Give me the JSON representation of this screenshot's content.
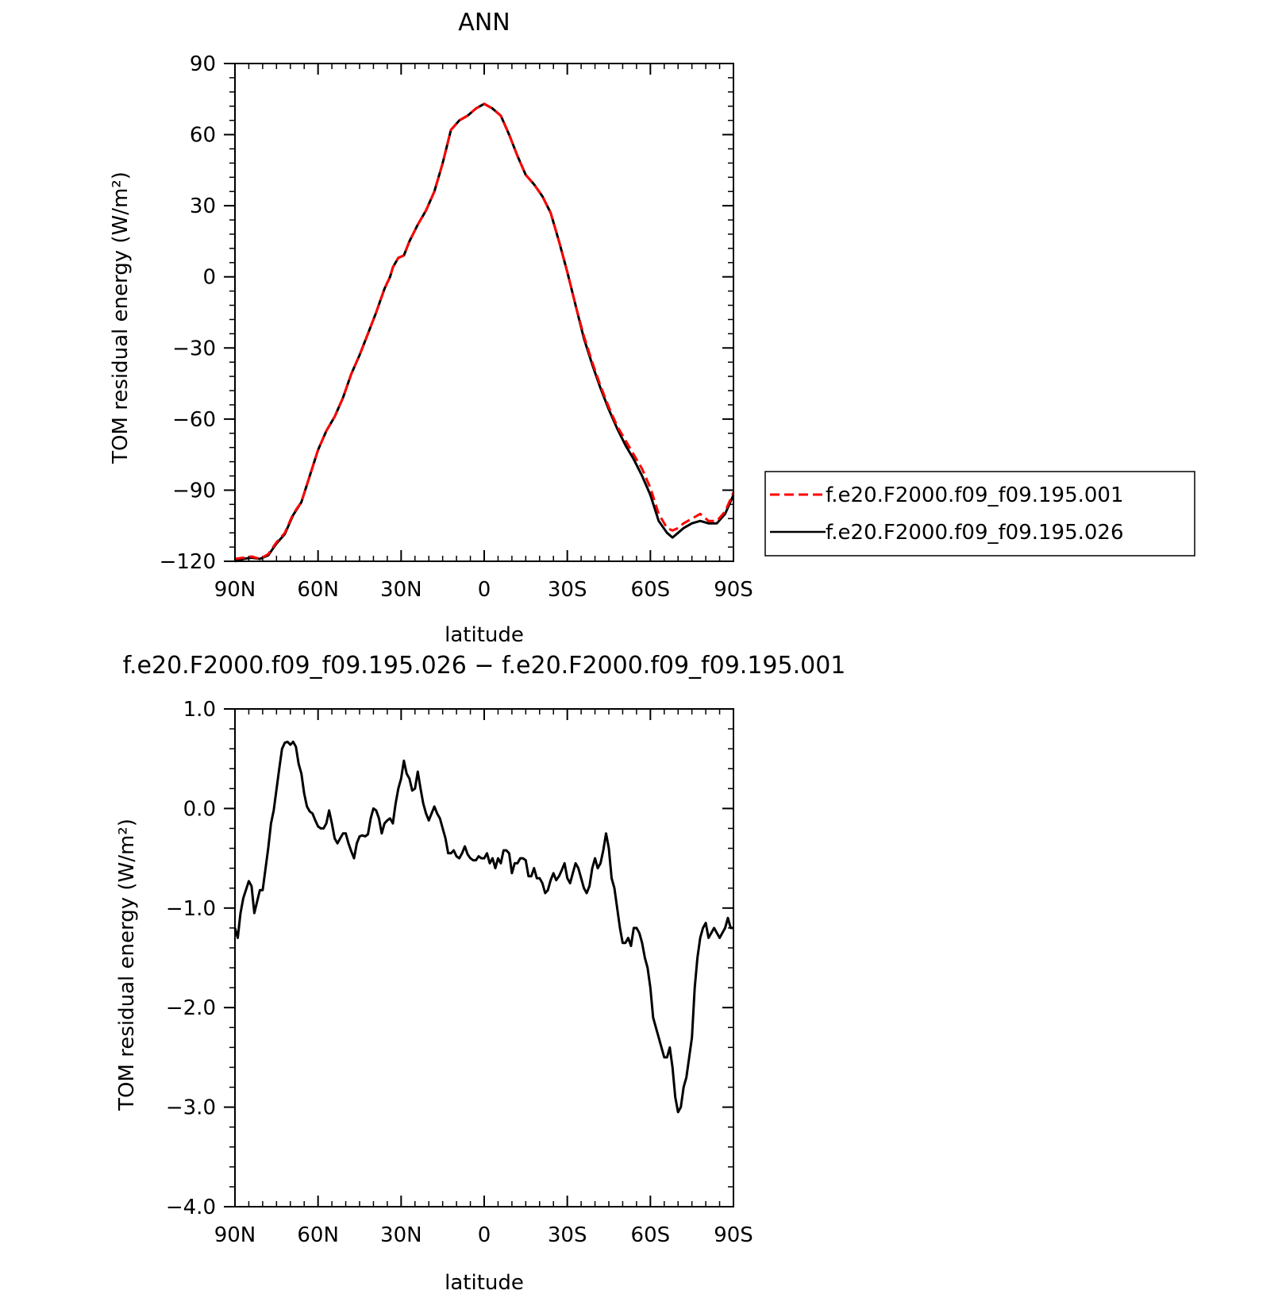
{
  "colors": {
    "series_case": "#ff0000",
    "series_control": "#000000",
    "diff_line": "#000000"
  },
  "chart_data": [
    {
      "type": "line",
      "title": "ANN",
      "xlabel": "latitude",
      "ylabel": "TOM residual energy (W/m²)",
      "xlim": [
        90,
        -90
      ],
      "ylim": [
        -120,
        90
      ],
      "x_ticks": [
        90,
        60,
        30,
        0,
        -30,
        -60,
        -90
      ],
      "x_tick_labels": [
        "90N",
        "60N",
        "30N",
        "0",
        "30S",
        "60S",
        "90S"
      ],
      "y_ticks": [
        90,
        60,
        30,
        0,
        -30,
        -60,
        -90,
        -120
      ],
      "y_tick_labels": [
        "90",
        "60",
        "30",
        "0",
        "−30",
        "−60",
        "−90",
        "−120"
      ],
      "legend_position": "right",
      "series": [
        {
          "name": "f.e20.F2000.f09_f09.195.001",
          "color": "#ff0000",
          "dash": "dashed",
          "x": [
            90,
            87,
            84,
            81,
            78,
            75,
            72,
            69,
            66,
            63,
            60,
            57,
            54,
            51,
            48,
            45,
            42,
            39,
            36,
            34,
            33,
            31,
            29,
            27,
            24,
            21,
            18,
            15,
            12,
            9,
            6,
            3,
            0,
            -3,
            -6,
            -9,
            -12,
            -15,
            -18,
            -21,
            -24,
            -27,
            -30,
            -33,
            -36,
            -39,
            -42,
            -45,
            -48,
            -51,
            -54,
            -57,
            -60,
            -63,
            -66,
            -68,
            -70,
            -72,
            -75,
            -78,
            -81,
            -84,
            -87,
            -90
          ],
          "y": [
            -119,
            -118.5,
            -118,
            -119,
            -117,
            -112,
            -108,
            -100,
            -95,
            -84,
            -73,
            -65,
            -59,
            -51,
            -41,
            -33,
            -24,
            -15,
            -5,
            0,
            4,
            8,
            9,
            15,
            22,
            28,
            36,
            48,
            62,
            66,
            68,
            71,
            73,
            71,
            68,
            60,
            51,
            43,
            39,
            34,
            27,
            15,
            2,
            -12,
            -25,
            -36,
            -46,
            -55,
            -63,
            -69,
            -75,
            -81,
            -89,
            -100,
            -106,
            -107,
            -106,
            -104,
            -102,
            -100,
            -103,
            -103,
            -99,
            -91
          ]
        },
        {
          "name": "f.e20.F2000.f09_f09.195.026",
          "color": "#000000",
          "dash": "solid",
          "x": [
            90,
            87,
            84,
            81,
            78,
            75,
            72,
            69,
            66,
            63,
            60,
            57,
            54,
            51,
            48,
            45,
            42,
            39,
            36,
            34,
            33,
            31,
            29,
            27,
            24,
            21,
            18,
            15,
            12,
            9,
            6,
            3,
            0,
            -3,
            -6,
            -9,
            -12,
            -15,
            -18,
            -21,
            -24,
            -27,
            -30,
            -33,
            -36,
            -39,
            -42,
            -45,
            -48,
            -51,
            -54,
            -57,
            -60,
            -63,
            -66,
            -68,
            -70,
            -72,
            -75,
            -78,
            -81,
            -84,
            -87,
            -90
          ],
          "y": [
            -120,
            -119,
            -118.5,
            -119,
            -117.5,
            -112.5,
            -108.5,
            -100.5,
            -95,
            -84,
            -73,
            -65,
            -59,
            -51,
            -41,
            -33,
            -24,
            -15,
            -5,
            0,
            4,
            8,
            9,
            15,
            22,
            28,
            36,
            48,
            62,
            66,
            68,
            71,
            73,
            71,
            68,
            60,
            51,
            43,
            39,
            34,
            27,
            15,
            2,
            -12,
            -26,
            -37,
            -47,
            -56,
            -64,
            -71,
            -77,
            -84,
            -92,
            -103,
            -108,
            -110,
            -108,
            -106,
            -104,
            -103,
            -104,
            -104,
            -100,
            -92
          ]
        }
      ]
    },
    {
      "type": "line",
      "title": "f.e20.F2000.f09_f09.195.026 − f.e20.F2000.f09_f09.195.001",
      "xlabel": "latitude",
      "ylabel": "TOM residual energy (W/m²)",
      "xlim": [
        90,
        -90
      ],
      "ylim": [
        -4.0,
        1.0
      ],
      "x_ticks": [
        90,
        60,
        30,
        0,
        -30,
        -60,
        -90
      ],
      "x_tick_labels": [
        "90N",
        "60N",
        "30N",
        "0",
        "30S",
        "60S",
        "90S"
      ],
      "y_ticks": [
        1.0,
        0.0,
        -1.0,
        -2.0,
        -3.0,
        -4.0
      ],
      "y_tick_labels": [
        "1.0",
        "0.0",
        "−1.0",
        "−2.0",
        "−3.0",
        "−4.0"
      ],
      "series": [
        {
          "color": "#000000",
          "dash": "solid",
          "x": [
            90,
            89,
            88,
            87,
            85,
            84,
            83,
            81,
            80,
            78,
            77,
            76,
            74,
            73,
            72,
            71,
            70,
            69,
            68,
            67,
            66,
            65,
            64,
            63,
            62,
            61,
            60,
            59,
            58,
            57,
            56,
            55,
            54,
            53,
            52,
            51,
            50,
            49,
            48,
            47,
            46,
            45,
            44,
            43,
            42,
            41,
            40,
            39,
            38,
            37,
            36,
            35,
            34,
            33,
            32,
            31,
            30,
            29,
            28,
            27,
            26,
            25,
            24,
            23,
            22,
            21,
            20,
            19,
            18,
            17,
            16,
            15,
            14,
            13,
            12,
            11,
            10,
            9,
            8,
            7,
            6,
            5,
            4,
            3,
            2,
            1,
            0,
            -1,
            -2,
            -3,
            -4,
            -5,
            -6,
            -7,
            -8,
            -9,
            -10,
            -11,
            -12,
            -13,
            -14,
            -15,
            -16,
            -17,
            -18,
            -19,
            -20,
            -21,
            -22,
            -23,
            -24,
            -25,
            -26,
            -27,
            -28,
            -29,
            -30,
            -31,
            -32,
            -33,
            -34,
            -35,
            -36,
            -37,
            -38,
            -39,
            -40,
            -41,
            -42,
            -43,
            -44,
            -45,
            -46,
            -47,
            -48,
            -49,
            -50,
            -51,
            -52,
            -53,
            -54,
            -55,
            -56,
            -57,
            -58,
            -59,
            -60,
            -61,
            -62,
            -63,
            -64,
            -65,
            -66,
            -67,
            -68,
            -69,
            -70,
            -71,
            -72,
            -73,
            -74,
            -75,
            -76,
            -77,
            -78,
            -79,
            -80,
            -81,
            -82,
            -83,
            -84,
            -85,
            -86,
            -87,
            -88,
            -89,
            -90
          ],
          "y": [
            -1.2,
            -1.3,
            -1.05,
            -0.9,
            -0.73,
            -0.78,
            -1.05,
            -0.82,
            -0.82,
            -0.4,
            -0.15,
            -0.02,
            0.4,
            0.6,
            0.66,
            0.67,
            0.64,
            0.67,
            0.62,
            0.45,
            0.35,
            0.15,
            0.02,
            -0.03,
            -0.05,
            -0.12,
            -0.18,
            -0.2,
            -0.2,
            -0.15,
            -0.02,
            -0.15,
            -0.3,
            -0.35,
            -0.3,
            -0.25,
            -0.25,
            -0.35,
            -0.43,
            -0.5,
            -0.35,
            -0.28,
            -0.27,
            -0.28,
            -0.26,
            -0.1,
            0.0,
            -0.02,
            -0.1,
            -0.25,
            -0.15,
            -0.12,
            -0.1,
            -0.15,
            0.05,
            0.2,
            0.3,
            0.48,
            0.35,
            0.3,
            0.18,
            0.2,
            0.37,
            0.2,
            0.05,
            -0.05,
            -0.12,
            -0.05,
            0.02,
            -0.05,
            -0.1,
            -0.2,
            -0.3,
            -0.45,
            -0.45,
            -0.42,
            -0.48,
            -0.5,
            -0.45,
            -0.38,
            -0.46,
            -0.5,
            -0.52,
            -0.52,
            -0.48,
            -0.5,
            -0.5,
            -0.45,
            -0.55,
            -0.5,
            -0.6,
            -0.5,
            -0.55,
            -0.42,
            -0.42,
            -0.45,
            -0.65,
            -0.55,
            -0.55,
            -0.5,
            -0.5,
            -0.52,
            -0.68,
            -0.68,
            -0.6,
            -0.7,
            -0.7,
            -0.75,
            -0.85,
            -0.82,
            -0.72,
            -0.65,
            -0.72,
            -0.68,
            -0.62,
            -0.55,
            -0.7,
            -0.75,
            -0.65,
            -0.55,
            -0.6,
            -0.7,
            -0.8,
            -0.85,
            -0.78,
            -0.6,
            -0.5,
            -0.6,
            -0.55,
            -0.42,
            -0.25,
            -0.4,
            -0.7,
            -0.8,
            -1.0,
            -1.2,
            -1.35,
            -1.35,
            -1.3,
            -1.38,
            -1.2,
            -1.2,
            -1.25,
            -1.35,
            -1.5,
            -1.6,
            -1.8,
            -2.1,
            -2.2,
            -2.3,
            -2.4,
            -2.5,
            -2.5,
            -2.4,
            -2.6,
            -2.9,
            -3.05,
            -3.0,
            -2.8,
            -2.7,
            -2.5,
            -2.3,
            -1.8,
            -1.5,
            -1.3,
            -1.2,
            -1.15,
            -1.3,
            -1.25,
            -1.2,
            -1.25,
            -1.3,
            -1.25,
            -1.2,
            -1.1,
            -1.2,
            -1.2
          ]
        }
      ]
    }
  ]
}
